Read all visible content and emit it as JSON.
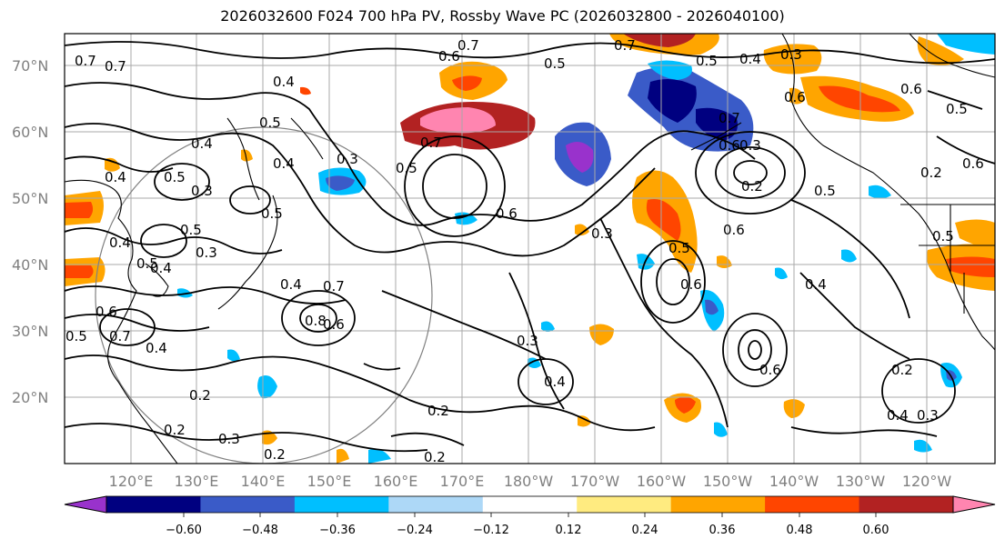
{
  "title": "2026032600 F024 700 hPa PV, Rossby Wave PC (2026032800 - 2026040100)",
  "lat_labels": [
    "70°N",
    "60°N",
    "50°N",
    "40°N",
    "30°N",
    "20°N"
  ],
  "lon_labels": [
    "120°E",
    "130°E",
    "140°E",
    "150°E",
    "160°E",
    "170°E",
    "180°W",
    "170°W",
    "160°W",
    "150°W",
    "140°W",
    "130°W",
    "120°W"
  ],
  "contour_labels": [
    "0.7",
    "0.6",
    "0.5",
    "0.4",
    "0.3",
    "0.2",
    "0.8"
  ],
  "colorbar": {
    "colors": [
      "#9932cc",
      "#000080",
      "#3a5bc8",
      "#00bfff",
      "#add8f7",
      "#ffffff",
      "#ffeb80",
      "#ffa500",
      "#ff4500",
      "#b22222",
      "#ff85b0"
    ],
    "tick_labels": [
      "−0.60",
      "−0.48",
      "−0.36",
      "−0.24",
      "−0.12",
      "0.12",
      "0.24",
      "0.36",
      "0.48",
      "0.60"
    ]
  }
}
